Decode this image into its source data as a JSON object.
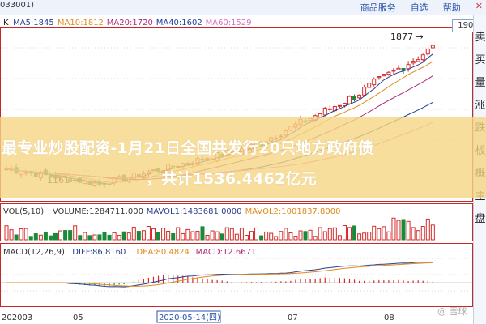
{
  "header": {
    "code": "033001)",
    "links": [
      "商品服务",
      "自选",
      "帮助"
    ],
    "close_glyph": "✕"
  },
  "ma_legend": [
    {
      "label": "K",
      "color": "#222222"
    },
    {
      "label": "MA5:1845",
      "color": "#2a3f8f"
    },
    {
      "label": "MA10:1812",
      "color": "#e08a1c"
    },
    {
      "label": "MA20:1720",
      "color": "#b0287a"
    },
    {
      "label": "MA40:1602",
      "color": "#1c3f9c"
    },
    {
      "label": "MA60:1529",
      "color": "#d86fc0"
    }
  ],
  "price": {
    "current": "1900",
    "high_label": "1877",
    "low_label": "1161"
  },
  "right_panel": [
    "卖",
    "买",
    "量",
    "涨",
    "跌",
    "板",
    "概",
    "主",
    "盘"
  ],
  "vol_legend": [
    {
      "label": "VOL(5,10)",
      "color": "#333333"
    },
    {
      "label": "VOLUME:1284711.000",
      "color": "#333333"
    },
    {
      "label": "MAVOL1:1483681.0000",
      "color": "#2a3f8f"
    },
    {
      "label": "MAVOL2:1001837.8000",
      "color": "#e08a1c"
    }
  ],
  "macd_legend": [
    {
      "label": "MACD(12,26,9)",
      "color": "#333333"
    },
    {
      "label": "DIFF:86.8160",
      "color": "#2a3f8f"
    },
    {
      "label": "DEA:80.4824",
      "color": "#e08a1c"
    },
    {
      "label": "MACD:12.6671",
      "color": "#b0287a"
    }
  ],
  "x_axis": {
    "labels": [
      "202003",
      "05",
      "2020-05-14(四)",
      "07",
      "08"
    ]
  },
  "banner": {
    "line1": "最专业炒股配资-1月21日全国共发行20只地方政府债",
    "line2": "，共计1536.4462亿元"
  },
  "watermark": "@ 雪球"
}
